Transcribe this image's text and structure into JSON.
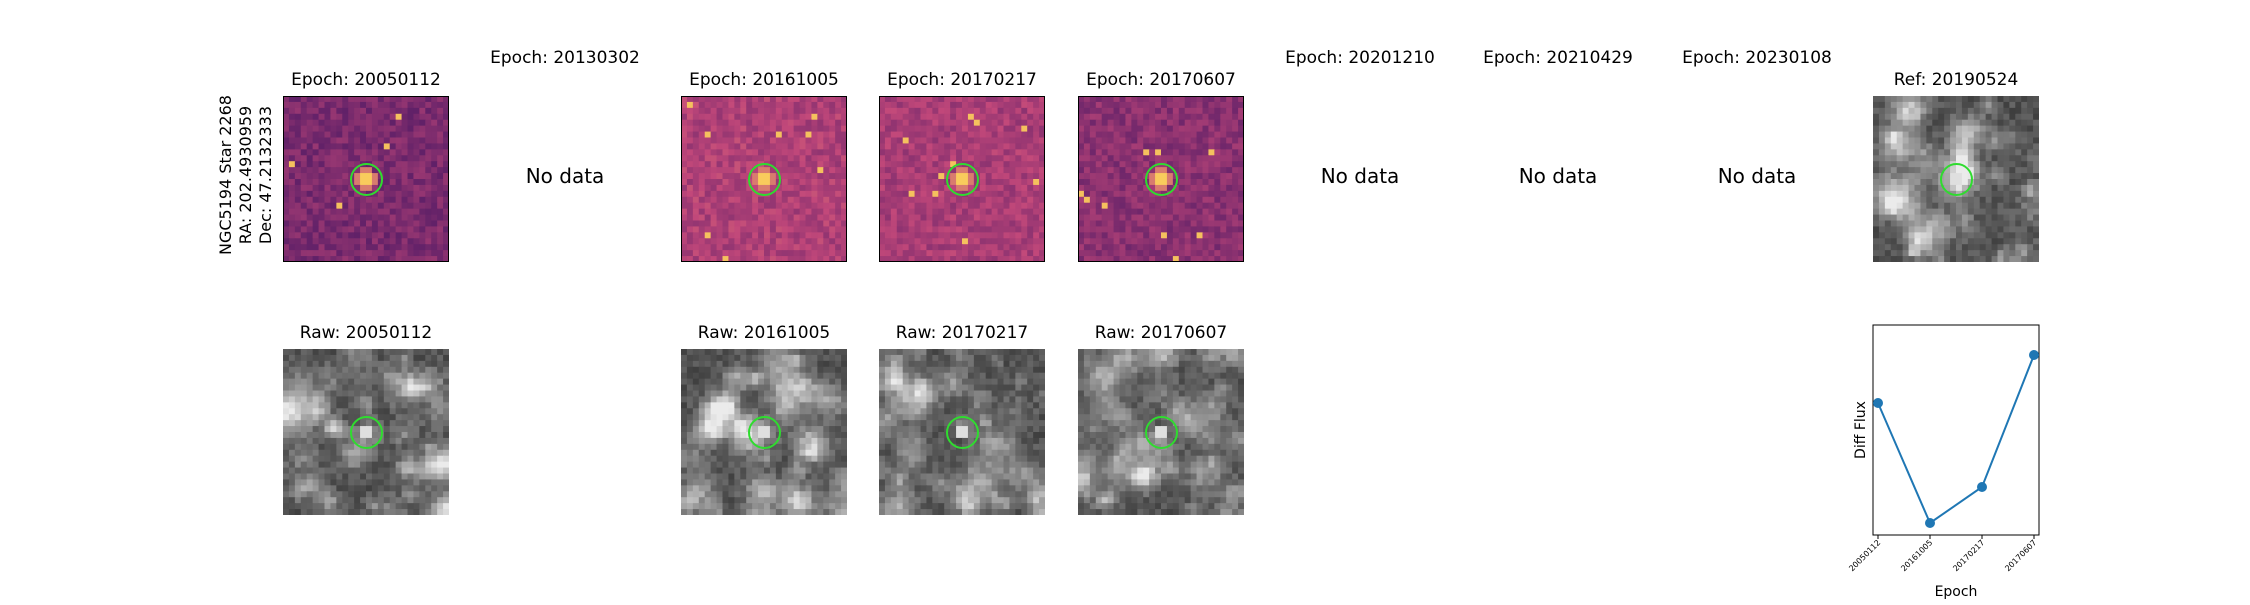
{
  "side_label": {
    "line1": "NGC5194 Star 2268",
    "line2": "RA: 202.4930959",
    "line3": "Dec: 47.2132333"
  },
  "epochs": [
    {
      "title": "Epoch: 20050112",
      "has_data": true,
      "style": "diff"
    },
    {
      "title": "Epoch: 20130302",
      "has_data": false,
      "style": "none"
    },
    {
      "title": "Epoch: 20161005",
      "has_data": true,
      "style": "diff"
    },
    {
      "title": "Epoch: 20170217",
      "has_data": true,
      "style": "diff"
    },
    {
      "title": "Epoch: 20170607",
      "has_data": true,
      "style": "diff"
    },
    {
      "title": "Epoch: 20201210",
      "has_data": false,
      "style": "none"
    },
    {
      "title": "Epoch: 20210429",
      "has_data": false,
      "style": "none"
    },
    {
      "title": "Epoch: 20230108",
      "has_data": false,
      "style": "none"
    }
  ],
  "no_data_label": "No data",
  "reference": {
    "title": "Ref: 20190524"
  },
  "raw": [
    {
      "title": "Raw: 20050112"
    },
    {
      "title": "Raw: 20161005"
    },
    {
      "title": "Raw: 20170217"
    },
    {
      "title": "Raw: 20170607"
    }
  ],
  "colors": {
    "marker_circle": "#2fdc2f",
    "line": "#1f77b4",
    "diff_low": "#2b0b5e",
    "diff_mid": "#c2487a",
    "diff_high": "#fcd25a"
  },
  "chart_data": {
    "type": "line",
    "categories": [
      "20050112",
      "20161005",
      "20170217",
      "20170607"
    ],
    "values": [
      0.55,
      -0.45,
      -0.15,
      0.95
    ],
    "title": "",
    "xlabel": "Epoch",
    "ylabel": "Diff Flux",
    "ylim": [
      -0.55,
      1.2
    ]
  }
}
